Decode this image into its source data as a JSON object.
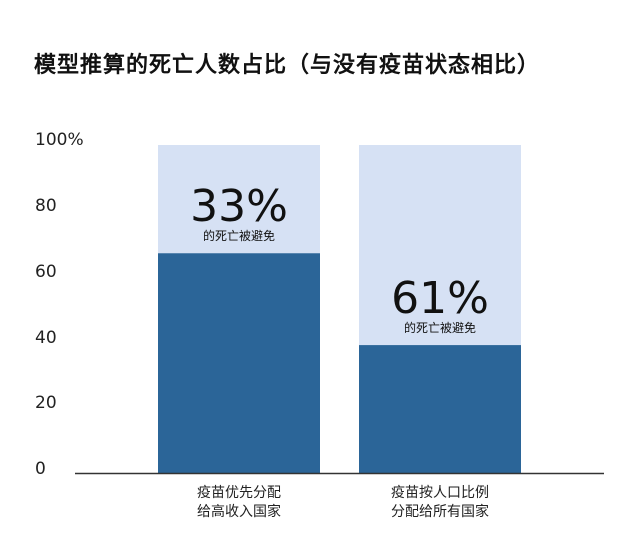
{
  "title": "模型推算的死亡人数占比（与没有疫苗状态相比）",
  "colors": {
    "background": "#ffffff",
    "deaths_bar": "#2b6598",
    "averted_bar": "#d6e1f4",
    "axis": "#333333",
    "text": "#222222"
  },
  "chart_data": {
    "type": "bar",
    "stacked": true,
    "title": "模型推算的死亡人数占比（与没有疫苗状态相比）",
    "xlabel": "",
    "ylabel": "",
    "ylim": [
      0,
      100
    ],
    "yticks": [
      "0",
      "20",
      "40",
      "60",
      "80",
      "100%"
    ],
    "ytick_values": [
      0,
      20,
      40,
      60,
      80,
      100
    ],
    "categories": [
      [
        "疫苗优先分配",
        "给高收入国家"
      ],
      [
        "疫苗按人口比例",
        "分配给所有国家"
      ]
    ],
    "series": [
      {
        "values": [
          67,
          39
        ]
      },
      {
        "values": [
          33,
          61
        ]
      }
    ],
    "annotations": [
      {
        "value": "33%",
        "caption": "的死亡被避免"
      },
      {
        "value": "61%",
        "caption": "的死亡被避免"
      }
    ]
  }
}
